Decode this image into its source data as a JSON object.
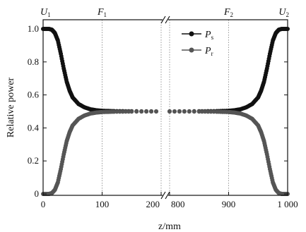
{
  "chart_data": {
    "type": "scatter",
    "xlabel": "z/mm",
    "ylabel": "Relative power",
    "ylim": [
      0,
      1.05
    ],
    "x_segments": [
      {
        "range": [
          0,
          200
        ],
        "ticks": [
          0,
          100,
          200
        ],
        "tick_labels": [
          "0",
          "100",
          "200"
        ]
      },
      {
        "range": [
          800,
          1000
        ],
        "ticks": [
          800,
          900,
          1000
        ],
        "tick_labels": [
          "800",
          "900",
          "1 000"
        ]
      }
    ],
    "y_ticks": [
      0,
      0.2,
      0.4,
      0.6,
      0.8,
      1.0
    ],
    "y_tick_labels": [
      "0",
      "0.2",
      "0.4",
      "0.6",
      "0.8",
      "1.0"
    ],
    "axis_break": true,
    "top_labels": [
      {
        "main": "U",
        "sub": "1",
        "x": 0
      },
      {
        "main": "F",
        "sub": "1",
        "x": 100
      },
      {
        "main": "F",
        "sub": "2",
        "x": 900
      },
      {
        "main": "U",
        "sub": "2",
        "x": 1000
      }
    ],
    "reference_lines_x": [
      100,
      200,
      800,
      900
    ],
    "legend": {
      "position": "top-right",
      "entries": [
        {
          "main": "P",
          "sub": "s",
          "series": 0
        },
        {
          "main": "P",
          "sub": "r",
          "series": 1
        }
      ]
    },
    "series": [
      {
        "color": "#111111",
        "marker": "circle",
        "points": [
          [
            0,
            1.0
          ],
          [
            10,
            1.0
          ],
          [
            15,
            0.995
          ],
          [
            20,
            0.975
          ],
          [
            25,
            0.93
          ],
          [
            30,
            0.85
          ],
          [
            35,
            0.76
          ],
          [
            40,
            0.68
          ],
          [
            45,
            0.625
          ],
          [
            50,
            0.585
          ],
          [
            60,
            0.545
          ],
          [
            70,
            0.525
          ],
          [
            80,
            0.513
          ],
          [
            90,
            0.507
          ],
          [
            100,
            0.504
          ],
          [
            120,
            0.502
          ],
          [
            150,
            0.501
          ],
          [
            200,
            0.5
          ],
          [
            800,
            0.5
          ],
          [
            850,
            0.501
          ],
          [
            880,
            0.502
          ],
          [
            900,
            0.504
          ],
          [
            910,
            0.507
          ],
          [
            920,
            0.513
          ],
          [
            930,
            0.525
          ],
          [
            940,
            0.545
          ],
          [
            950,
            0.585
          ],
          [
            955,
            0.625
          ],
          [
            960,
            0.68
          ],
          [
            965,
            0.76
          ],
          [
            970,
            0.85
          ],
          [
            975,
            0.93
          ],
          [
            980,
            0.975
          ],
          [
            985,
            0.995
          ],
          [
            990,
            1.0
          ],
          [
            1000,
            1.0
          ]
        ]
      },
      {
        "color": "#555555",
        "marker": "circle",
        "points": [
          [
            0,
            0.0
          ],
          [
            10,
            0.0
          ],
          [
            15,
            0.005
          ],
          [
            20,
            0.025
          ],
          [
            25,
            0.07
          ],
          [
            30,
            0.15
          ],
          [
            35,
            0.24
          ],
          [
            40,
            0.32
          ],
          [
            45,
            0.375
          ],
          [
            50,
            0.415
          ],
          [
            60,
            0.455
          ],
          [
            70,
            0.475
          ],
          [
            80,
            0.487
          ],
          [
            90,
            0.493
          ],
          [
            100,
            0.496
          ],
          [
            120,
            0.498
          ],
          [
            150,
            0.499
          ],
          [
            200,
            0.5
          ],
          [
            800,
            0.5
          ],
          [
            850,
            0.499
          ],
          [
            880,
            0.498
          ],
          [
            900,
            0.496
          ],
          [
            910,
            0.493
          ],
          [
            920,
            0.487
          ],
          [
            930,
            0.475
          ],
          [
            940,
            0.455
          ],
          [
            950,
            0.415
          ],
          [
            955,
            0.375
          ],
          [
            960,
            0.32
          ],
          [
            965,
            0.24
          ],
          [
            970,
            0.15
          ],
          [
            975,
            0.07
          ],
          [
            980,
            0.025
          ],
          [
            985,
            0.005
          ],
          [
            990,
            0.0
          ],
          [
            1000,
            0.0
          ]
        ]
      }
    ]
  }
}
